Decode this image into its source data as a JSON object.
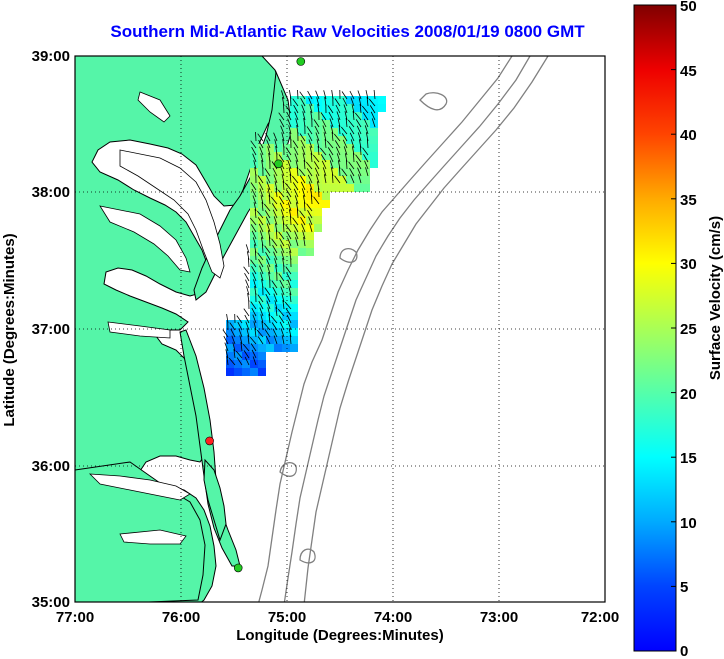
{
  "title": "Southern Mid-Atlantic Raw Velocities 2008/01/19 0800 GMT",
  "x_axis": {
    "label": "Longitude (Degrees:Minutes)",
    "ticks": [
      "77:00",
      "76:00",
      "75:00",
      "74:00",
      "73:00",
      "72:00"
    ]
  },
  "y_axis": {
    "label": "Latitude (Degrees:Minutes)",
    "ticks": [
      "39:00",
      "38:00",
      "37:00",
      "36:00",
      "35:00"
    ]
  },
  "colorbar": {
    "label": "Surface Velocity (cm/s)",
    "ticks": [
      "50",
      "45",
      "40",
      "35",
      "30",
      "25",
      "20",
      "15",
      "10",
      "5",
      "0"
    ],
    "min": 0,
    "max": 50,
    "colormap": "jet"
  },
  "map": {
    "land_color": "#55f5a8",
    "water_color": "#ffffff",
    "grid": "dotted",
    "bathymetry_color": "#808080"
  },
  "stations": [
    {
      "lon": -74.87,
      "lat": 38.96,
      "color": "#22cc22"
    },
    {
      "lon": -75.08,
      "lat": 38.21,
      "color": "#22cc22"
    },
    {
      "lon": -75.73,
      "lat": 36.18,
      "color": "#ff2020"
    },
    {
      "lon": -75.46,
      "lat": 35.25,
      "color": "#22cc22"
    }
  ]
}
